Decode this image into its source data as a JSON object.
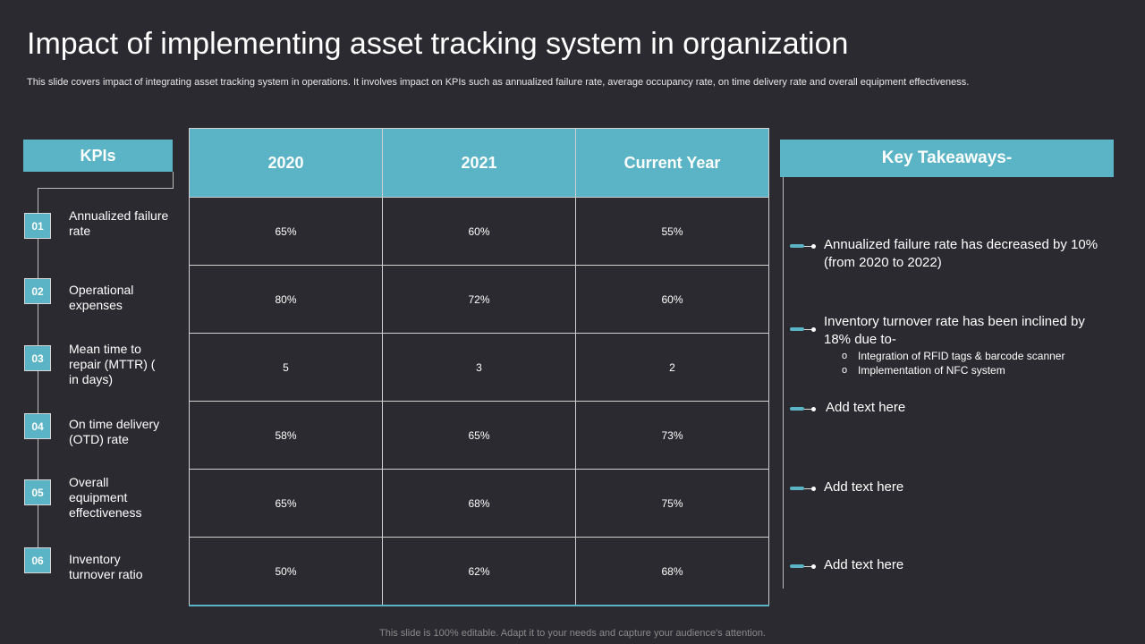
{
  "title": "Impact of implementing asset tracking system in organization",
  "subtitle": "This slide covers impact of integrating asset tracking system in operations. It involves impact on KPIs such as annualized failure rate, average occupancy rate,  on time delivery rate and overall equipment effectiveness.",
  "kpis": {
    "header": "KPIs",
    "items": [
      {
        "num": "01",
        "label": "Annualized failure rate"
      },
      {
        "num": "02",
        "label": "Operational expenses"
      },
      {
        "num": "03",
        "label": "Mean time to repair (MTTR) ( in days)"
      },
      {
        "num": "04",
        "label": "On time delivery (OTD) rate"
      },
      {
        "num": "05",
        "label": "Overall equipment effectiveness"
      },
      {
        "num": "06",
        "label": "Inventory turnover ratio"
      }
    ]
  },
  "table": {
    "headers": [
      "2020",
      "2021",
      "Current Year"
    ],
    "rows": [
      [
        "65%",
        "60%",
        "55%"
      ],
      [
        "80%",
        "72%",
        "60%"
      ],
      [
        "5",
        "3",
        "2"
      ],
      [
        "58%",
        "65%",
        "73%"
      ],
      [
        "65%",
        "68%",
        "75%"
      ],
      [
        "50%",
        "62%",
        "68%"
      ]
    ]
  },
  "takeaways": {
    "header": "Key Takeaways-",
    "items": [
      {
        "text": "Annualized failure  rate has decreased by 10% (from 2020 to 2022)",
        "bullets": []
      },
      {
        "text": "Inventory  turnover rate has been inclined by 18% due to-",
        "bullets": [
          "Integration of RFID tags & barcode scanner",
          "Implementation of NFC system"
        ]
      },
      {
        "text": "Add text here",
        "bullets": []
      },
      {
        "text": "Add text here",
        "bullets": []
      },
      {
        "text": "Add text here",
        "bullets": []
      }
    ]
  },
  "footer": "This slide is 100% editable. Adapt it to your needs and capture your audience's attention.",
  "colors": {
    "accent": "#5ab4c5",
    "background": "#2b2a30"
  }
}
